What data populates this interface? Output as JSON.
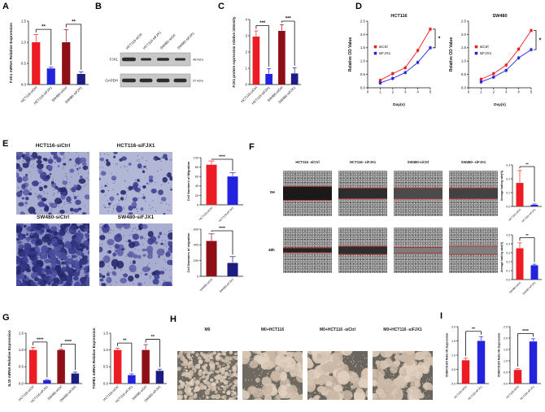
{
  "colors": {
    "red": "#ed1c24",
    "blue": "#2323dd",
    "dark_red": "#8e1016",
    "dark_blue": "#1c1c82",
    "axis": "#111111",
    "wound_line": "#b03434"
  },
  "panels": {
    "A": {
      "letter": "A"
    },
    "B": {
      "letter": "B",
      "lanes": [
        "HCT116-siCtrl",
        "HCT116-siFJX1",
        "SW480-siCtrl",
        "SW480-siFJX1"
      ],
      "rows": [
        {
          "protein": "FJX1",
          "size": "48 kDa",
          "band_widths": [
            17,
            13,
            15,
            13
          ],
          "band_heights": [
            4.5,
            3,
            3.5,
            3
          ]
        },
        {
          "protein": "GAPDH",
          "size": "37 kDa",
          "band_widths": [
            17,
            16,
            16,
            16
          ],
          "band_heights": [
            4.5,
            4.5,
            4.5,
            4.5
          ]
        }
      ]
    },
    "C": {
      "letter": "C"
    },
    "D": {
      "letter": "D"
    },
    "E": {
      "letter": "E",
      "image_labels": [
        "HCT116-siCtrl",
        "HCT116-siFJX1",
        "SW480-siCtrl",
        "SW480-siFJX1"
      ]
    },
    "F": {
      "letter": "F",
      "column_labels": [
        "HCT116 -siCtrl",
        "HCT116- siFJX1",
        "SW480-siCtrl",
        "SW480- siFJX1"
      ],
      "row_labels": [
        "0H",
        "48h"
      ]
    },
    "G": {
      "letter": "G"
    },
    "H": {
      "letter": "H",
      "image_labels": [
        "M0",
        "M0+HCT116",
        "M0+HCT116 -siCtrl",
        "M0+HCT116 -siFJX1"
      ]
    },
    "I": {
      "letter": "I"
    }
  },
  "chart_data": [
    {
      "id": "A",
      "type": "bar",
      "ylabel": "FJX1 mRNA Relative Expression",
      "ylim": [
        0,
        1.5
      ],
      "yticks": [
        0,
        0.5,
        1,
        1.5
      ],
      "ydec": 1,
      "categories": [
        "HCT116-siCtrl",
        "HCT116-siFJX1",
        "SW480-siCtrl",
        "SW480-siFJX1"
      ],
      "values": [
        1.0,
        0.38,
        1.0,
        0.25
      ],
      "errors": [
        0.18,
        0.03,
        0.3,
        0.05
      ],
      "bar_colors": [
        "red",
        "blue",
        "dark_red",
        "dark_blue"
      ],
      "sig": [
        {
          "a": 0,
          "b": 1,
          "label": "**"
        },
        {
          "a": 2,
          "b": 3,
          "label": "**"
        }
      ]
    },
    {
      "id": "C",
      "type": "bar",
      "ylabel": "FJX1 protein expression relative intensity",
      "ylim": [
        0,
        4
      ],
      "yticks": [
        0,
        1,
        2,
        3,
        4
      ],
      "ydec": 0,
      "categories": [
        "HCT116-siCtrl",
        "HCT116-siFJX1",
        "SW480-siCtrl",
        "SW480-siFJX1"
      ],
      "values": [
        2.95,
        0.65,
        3.3,
        0.68
      ],
      "errors": [
        0.35,
        0.33,
        0.38,
        0.35
      ],
      "bar_colors": [
        "red",
        "blue",
        "dark_red",
        "dark_blue"
      ],
      "sig": [
        {
          "a": 0,
          "b": 1,
          "label": "***"
        },
        {
          "a": 2,
          "b": 3,
          "label": "***"
        }
      ]
    },
    {
      "id": "D1",
      "type": "line",
      "title": "HCT116",
      "xlabel": "Day(s)",
      "ylabel": "Relative OD Value",
      "xlim": [
        0,
        5
      ],
      "xticks": [
        0,
        1,
        2,
        3,
        4,
        5
      ],
      "ylim": [
        0,
        2.5
      ],
      "yticks": [
        0,
        0.5,
        1,
        1.5,
        2,
        2.5
      ],
      "ydec": 1,
      "x": [
        1,
        2,
        3,
        4,
        5
      ],
      "series": [
        {
          "name": "siCtrl",
          "color": "red",
          "values": [
            0.28,
            0.53,
            0.75,
            1.4,
            2.2
          ]
        },
        {
          "name": "siFJX1",
          "color": "blue",
          "values": [
            0.18,
            0.35,
            0.57,
            0.95,
            1.5
          ]
        }
      ],
      "sig": "*"
    },
    {
      "id": "D2",
      "type": "line",
      "title": "SW480",
      "xlabel": "Day(s)",
      "ylabel": "Relative OD Value",
      "xlim": [
        0,
        5
      ],
      "xticks": [
        0,
        1,
        2,
        3,
        4,
        5
      ],
      "ylim": [
        0,
        2.5
      ],
      "yticks": [
        0,
        0.5,
        1,
        1.5,
        2,
        2.5
      ],
      "ydec": 1,
      "x": [
        1,
        2,
        3,
        4,
        5
      ],
      "series": [
        {
          "name": "siCtrl",
          "color": "red",
          "values": [
            0.32,
            0.53,
            0.85,
            1.45,
            2.15
          ]
        },
        {
          "name": "siFJX1",
          "color": "blue",
          "values": [
            0.22,
            0.4,
            0.65,
            1.12,
            1.43
          ]
        }
      ],
      "sig": "*"
    },
    {
      "id": "E1",
      "type": "bar",
      "ylabel": "Cell Numbers of Migration",
      "ylim": [
        0,
        100
      ],
      "yticks": [
        0,
        20,
        40,
        60,
        80,
        100
      ],
      "ydec": 0,
      "categories": [
        "HCT116-siCtrl",
        "HCT116-siFJX1"
      ],
      "values": [
        85,
        60
      ],
      "errors": [
        8,
        8
      ],
      "bar_colors": [
        "red",
        "blue"
      ],
      "sig": [
        {
          "a": 0,
          "b": 1,
          "label": "****"
        }
      ]
    },
    {
      "id": "E2",
      "type": "bar",
      "ylabel": "Cell Numbers of migration",
      "ylim": [
        0,
        600
      ],
      "yticks": [
        0,
        200,
        400,
        600
      ],
      "ydec": 0,
      "categories": [
        "SW480-siCtrl",
        "SW480-siFJX1"
      ],
      "values": [
        450,
        170
      ],
      "errors": [
        90,
        80
      ],
      "bar_colors": [
        "dark_red",
        "dark_blue"
      ],
      "sig": [
        {
          "a": 0,
          "b": 1,
          "label": "****"
        }
      ]
    },
    {
      "id": "F1",
      "type": "bar",
      "ylabel": "Average healing rate(%)",
      "ylim": [
        0,
        0.3
      ],
      "yticks": [
        0,
        0.1,
        0.2,
        0.3
      ],
      "ydec": 1,
      "categories": [
        "HCT116-siCtrl",
        "HCT116-siFJX1"
      ],
      "values": [
        0.17,
        0.012
      ],
      "errors": [
        0.09,
        0.006
      ],
      "bar_colors": [
        "red",
        "blue"
      ],
      "sig": [
        {
          "a": 0,
          "b": 1,
          "label": "**"
        }
      ]
    },
    {
      "id": "F2",
      "type": "bar",
      "ylabel": "Average healing rate(%)",
      "ylim": [
        0,
        0.5
      ],
      "yticks": [
        0,
        0.1,
        0.2,
        0.3,
        0.4,
        0.5
      ],
      "ydec": 1,
      "categories": [
        "SW480-siCtrl",
        "SW480-siFJX1"
      ],
      "values": [
        0.35,
        0.16
      ],
      "errors": [
        0.06,
        0.012
      ],
      "bar_colors": [
        "red",
        "blue"
      ],
      "sig": [
        {
          "a": 0,
          "b": 1,
          "label": "**"
        }
      ]
    },
    {
      "id": "G1",
      "type": "bar",
      "ylabel": "IL10 mRNA Relative Expression",
      "ylim": [
        0,
        1.5
      ],
      "yticks": [
        0,
        0.5,
        1,
        1.5
      ],
      "ydec": 1,
      "categories": [
        "HCT116-siCtrl",
        "HCT116-siFJX1",
        "SW480-siCtrl",
        "SW480-siFJX1"
      ],
      "values": [
        1.0,
        0.1,
        1.0,
        0.3
      ],
      "errors": [
        0.08,
        0.02,
        0.02,
        0.04
      ],
      "bar_colors": [
        "red",
        "blue",
        "dark_red",
        "dark_blue"
      ],
      "sig": [
        {
          "a": 0,
          "b": 1,
          "label": "****"
        },
        {
          "a": 2,
          "b": 3,
          "label": "****"
        }
      ]
    },
    {
      "id": "G2",
      "type": "bar",
      "ylabel": "TGFB1 mRNA Relative Expression",
      "ylim": [
        0,
        1.5
      ],
      "yticks": [
        0,
        0.5,
        1,
        1.5
      ],
      "ydec": 1,
      "categories": [
        "HCT116-siCtrl",
        "HCT116-siFJX1",
        "SW480-siCtrl",
        "SW480-siFJX1"
      ],
      "values": [
        1.0,
        0.25,
        1.0,
        0.38
      ],
      "errors": [
        0.05,
        0.04,
        0.16,
        0.05
      ],
      "bar_colors": [
        "red",
        "blue",
        "dark_red",
        "dark_blue"
      ],
      "sig": [
        {
          "a": 0,
          "b": 1,
          "label": "**"
        },
        {
          "a": 2,
          "b": 3,
          "label": "**"
        }
      ]
    },
    {
      "id": "I1",
      "type": "bar",
      "ylabel": "CD80/CD163 Ratio M1 Expression",
      "ylim": [
        0,
        2
      ],
      "yticks": [
        0,
        0.5,
        1,
        1.5,
        2
      ],
      "ydec": 1,
      "categories": [
        "HCT116-siCtrl",
        "HCT116-siFJX1"
      ],
      "values": [
        0.82,
        1.5
      ],
      "errors": [
        0.07,
        0.15
      ],
      "bar_colors": [
        "red",
        "blue"
      ],
      "sig": [
        {
          "a": 0,
          "b": 1,
          "label": "**"
        }
      ]
    },
    {
      "id": "I2",
      "type": "bar",
      "ylabel": "CD80/CD163 Ratio M1 Expression",
      "ylim": [
        0,
        2.5
      ],
      "yticks": [
        0,
        0.5,
        1,
        1.5,
        2,
        2.5
      ],
      "ydec": 1,
      "categories": [
        "HCT116-siCtrl",
        "HCT116-siFJX1"
      ],
      "values": [
        0.6,
        1.85
      ],
      "errors": [
        0.05,
        0.12
      ],
      "bar_colors": [
        "red",
        "blue"
      ],
      "sig": [
        {
          "a": 0,
          "b": 1,
          "label": "****"
        }
      ]
    }
  ],
  "micro": {
    "e0": {
      "label": "HCT116-siCtrl",
      "bg": "#a9aed0",
      "palette": [
        "#23276b",
        "#3c3f92",
        "#5d60a8"
      ],
      "count": 110,
      "rmin": 1.2,
      "rmax": 4.5,
      "seed": 11,
      "speckle": 150,
      "speckle_color": "#41458c"
    },
    "e1": {
      "label": "HCT116-siFJX1",
      "bg": "#b3b7d6",
      "palette": [
        "#23276b",
        "#3c3f92",
        "#5d60a8"
      ],
      "count": 52,
      "rmin": 1.2,
      "rmax": 4.2,
      "seed": 22,
      "speckle": 110,
      "speckle_color": "#41458c"
    },
    "e2": {
      "label": "SW480-siCtrl",
      "bg": "#8d90c2",
      "palette": [
        "#23276b",
        "#343787",
        "#4b4e9e"
      ],
      "count": 300,
      "rmin": 1.5,
      "rmax": 5,
      "seed": 33,
      "speckle": 220,
      "speckle_color": "#2c2f7a"
    },
    "e3": {
      "label": "SW480-siFJX1",
      "bg": "#a9adcf",
      "palette": [
        "#23276b",
        "#3c3f92",
        "#5d60a8"
      ],
      "count": 85,
      "rmin": 1.5,
      "rmax": 5,
      "seed": 44,
      "speckle": 140,
      "speckle_color": "#41458c"
    },
    "h0": {
      "label": "M0",
      "bg": "#6e6961",
      "palette": [
        "#d6c4b2",
        "#c9b6a4",
        "#e0cfbf"
      ],
      "count": 260,
      "rmin": 1,
      "rmax": 3.2,
      "seed": 5,
      "speckle": 160,
      "speckle_color": "#e8dccc"
    },
    "h1": {
      "label": "M0+HCT116",
      "bg": "#6e6961",
      "palette": [
        "#d6c4b2",
        "#c9b6a4",
        "#e0cfbf"
      ],
      "count": 120,
      "rmin": 2.5,
      "rmax": 7,
      "seed": 6,
      "speckle": 150,
      "speckle_color": "#e8dccc",
      "clusters": 14,
      "spread": 20
    },
    "h2": {
      "label": "M0+HCT116 -siCtrl",
      "bg": "#6a655d",
      "palette": [
        "#d6c4b2",
        "#c9b6a4",
        "#e0cfbf"
      ],
      "count": 110,
      "rmin": 3,
      "rmax": 8,
      "seed": 7,
      "speckle": 150,
      "speckle_color": "#e8dccc",
      "clusters": 12,
      "spread": 22
    },
    "h3": {
      "label": "M0+HCT116 -siFJX1",
      "bg": "#6a655d",
      "palette": [
        "#d6c4b2",
        "#c9b6a4",
        "#e0cfbf"
      ],
      "count": 115,
      "rmin": 2.5,
      "rmax": 7.5,
      "seed": 8,
      "speckle": 150,
      "speckle_color": "#e8dccc",
      "clusters": 13,
      "spread": 21
    }
  },
  "wound": [
    {
      "column": "HCT116 -siCtrl",
      "time": "0H",
      "band_height": 16,
      "band_color": "#1a1a1a"
    },
    {
      "column": "HCT116- siFJX1",
      "time": "0H",
      "band_height": 12,
      "band_color": "#2d2d2d"
    },
    {
      "column": "SW480-siCtrl",
      "time": "0H",
      "band_height": 12,
      "band_color": "#4b4b4b"
    },
    {
      "column": "SW480- siFJX1",
      "time": "0H",
      "band_height": 12,
      "band_color": "#424242"
    },
    {
      "column": "HCT116 -siCtrl",
      "time": "48h",
      "band_height": 5,
      "band_color": "#242424"
    },
    {
      "column": "HCT116- siFJX1",
      "time": "48h",
      "band_height": 9,
      "band_color": "#2e2e2e"
    },
    {
      "column": "SW480-siCtrl",
      "time": "48h",
      "band_height": 6,
      "band_color": "#7d7d7d"
    },
    {
      "column": "SW480- siFJX1",
      "time": "48h",
      "band_height": 9,
      "band_color": "#7f7f7f"
    }
  ]
}
